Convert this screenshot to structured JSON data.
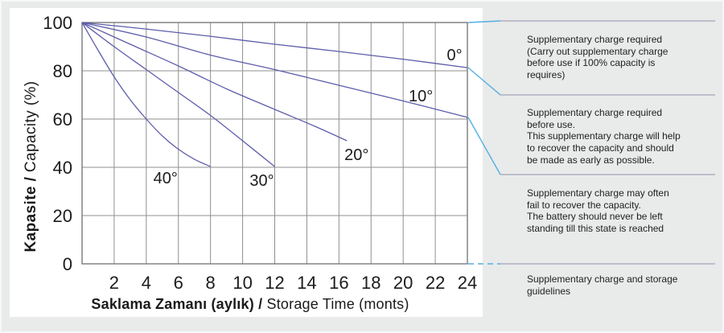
{
  "chart_data": {
    "type": "line",
    "title": "",
    "x_axis": {
      "title_bold": "Saklama Zamanı (aylık) / ",
      "title_regular": "Storage Time (monts)",
      "ticks": [
        2,
        4,
        6,
        8,
        10,
        12,
        14,
        16,
        18,
        20,
        22,
        24
      ],
      "range": [
        0,
        24
      ],
      "gridline_step": 2
    },
    "y_axis": {
      "title_bold": "Kapasite / ",
      "title_regular": "Capacity (%)",
      "ticks": [
        100,
        80,
        60,
        40,
        20,
        0
      ],
      "range": [
        0,
        100
      ],
      "gridline_step": 20
    },
    "grid": true,
    "legend": "inline-labels",
    "series": [
      {
        "name": "0°",
        "points": [
          [
            0,
            100
          ],
          [
            4,
            97.3
          ],
          [
            8,
            94.3
          ],
          [
            12,
            91
          ],
          [
            16,
            88
          ],
          [
            20,
            84.8
          ],
          [
            24,
            81.3
          ]
        ],
        "label_at": [
          23.2,
          86.7
        ]
      },
      {
        "name": "10°",
        "points": [
          [
            0,
            100
          ],
          [
            4,
            94
          ],
          [
            8,
            86.5
          ],
          [
            12,
            80.5
          ],
          [
            16,
            74
          ],
          [
            20,
            67.5
          ],
          [
            24,
            60.7
          ]
        ],
        "label_at": [
          21.1,
          69.7
        ]
      },
      {
        "name": "20°",
        "points": [
          [
            0,
            100
          ],
          [
            3,
            91
          ],
          [
            6,
            82
          ],
          [
            9,
            72.5
          ],
          [
            12,
            64
          ],
          [
            14.5,
            57
          ],
          [
            16.5,
            51
          ]
        ],
        "label_at": [
          17.1,
          45.3
        ]
      },
      {
        "name": "30°",
        "points": [
          [
            0,
            100
          ],
          [
            2,
            90
          ],
          [
            4,
            80.5
          ],
          [
            6,
            71
          ],
          [
            8,
            61.5
          ],
          [
            10,
            51
          ],
          [
            12,
            40.3
          ]
        ],
        "label_at": [
          11.2,
          34.7
        ]
      },
      {
        "name": "40°",
        "points": [
          [
            0,
            100
          ],
          [
            1,
            88.5
          ],
          [
            2,
            77.5
          ],
          [
            3,
            68
          ],
          [
            4,
            60
          ],
          [
            5,
            53
          ],
          [
            6,
            47.5
          ],
          [
            7,
            43.3
          ],
          [
            8,
            40.3
          ]
        ],
        "label_at": [
          5.2,
          35.7
        ]
      }
    ]
  },
  "annotations": [
    {
      "attach_capacity": 100,
      "leader_style": "solid",
      "lines": [
        "Supplementary charge required",
        "(Carry out supplementary charge",
        "before use if 100% capacity is",
        "requires)"
      ]
    },
    {
      "attach_capacity": 81.3,
      "leader_style": "solid",
      "lines": [
        "Supplementary charge required",
        "before use.",
        "This supplementary charge will help",
        "to recover the capacity and should",
        "be made  as early as possible."
      ]
    },
    {
      "attach_capacity": 60.7,
      "leader_style": "solid",
      "lines": [
        "Supplementary charge may often",
        "fail to recover the capacity.",
        "The battery should never be left",
        "standing till this state is reached"
      ]
    },
    {
      "attach_capacity": 0,
      "leader_style": "dashed",
      "lines": [
        "Supplementary charge and storage",
        "guidelines"
      ]
    }
  ],
  "colors": {
    "page_background": "#e9eaea",
    "panel_background": "#ffffff",
    "grid": "#8f8f8f",
    "plot_border": "#6f6f6f",
    "curve": "#5d5dab",
    "leader": "#52b0e2",
    "divider": "#9191ac",
    "text": "#1c1c1c"
  }
}
